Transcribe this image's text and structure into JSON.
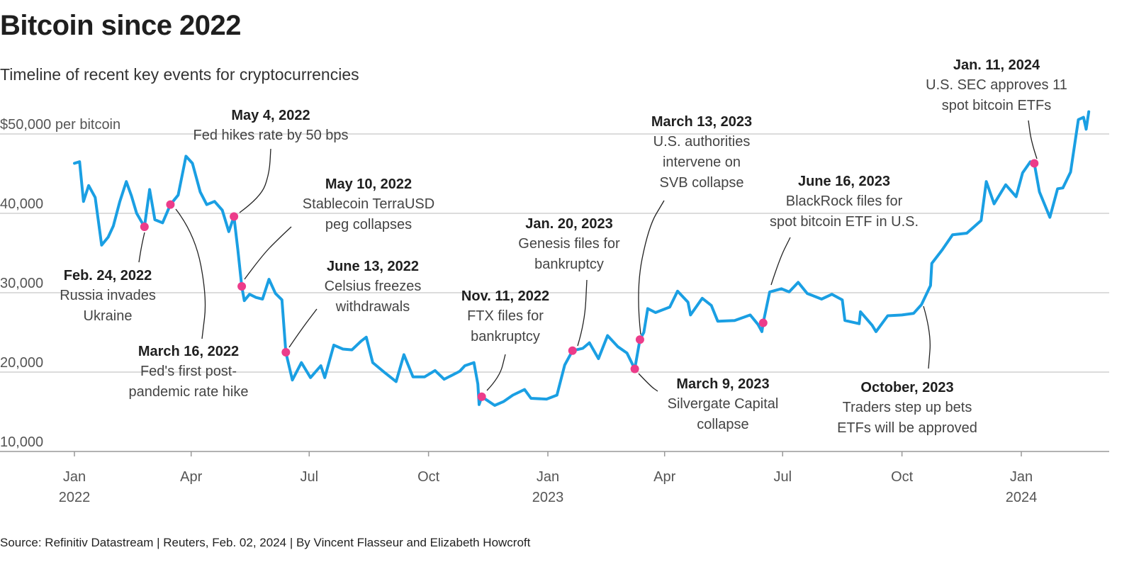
{
  "header": {
    "title": "Bitcoin since 2022",
    "subtitle": "Timeline of recent key events for cryptocurrencies"
  },
  "footer": {
    "source": "Source: Refinitiv Datastream | Reuters, Feb. 02, 2024 | By Vincent Flasseur and Elizabeth Howcroft"
  },
  "colors": {
    "line": "#1a9fe3",
    "marker": "#ec3c8a",
    "grid": "#c8c8c8",
    "axis": "#999999"
  },
  "chart_data": {
    "type": "line",
    "ylim": [
      10000,
      50000
    ],
    "y_ticks": [
      {
        "value": 50000,
        "label": "$50,000 per bitcoin"
      },
      {
        "value": 40000,
        "label": "40,000"
      },
      {
        "value": 30000,
        "label": "30,000"
      },
      {
        "value": 20000,
        "label": "20,000"
      },
      {
        "value": 10000,
        "label": "10,000"
      }
    ],
    "x_ticks": [
      {
        "date": "2022-01-01",
        "label": "Jan",
        "year": "2022"
      },
      {
        "date": "2022-04-01",
        "label": "Apr",
        "year": ""
      },
      {
        "date": "2022-07-01",
        "label": "Jul",
        "year": ""
      },
      {
        "date": "2022-10-01",
        "label": "Oct",
        "year": ""
      },
      {
        "date": "2023-01-01",
        "label": "Jan",
        "year": "2023"
      },
      {
        "date": "2023-04-01",
        "label": "Apr",
        "year": ""
      },
      {
        "date": "2023-07-01",
        "label": "Jul",
        "year": ""
      },
      {
        "date": "2023-10-01",
        "label": "Oct",
        "year": ""
      },
      {
        "date": "2024-01-01",
        "label": "Jan",
        "year": "2024"
      }
    ],
    "xlim": [
      "2021-12-25",
      "2024-02-25"
    ],
    "series": [
      {
        "points": [
          [
            "2022-01-01",
            46300
          ],
          [
            "2022-01-05",
            46500
          ],
          [
            "2022-01-08",
            41500
          ],
          [
            "2022-01-12",
            43500
          ],
          [
            "2022-01-17",
            42000
          ],
          [
            "2022-01-22",
            36000
          ],
          [
            "2022-01-27",
            37000
          ],
          [
            "2022-01-31",
            38400
          ],
          [
            "2022-02-05",
            41500
          ],
          [
            "2022-02-10",
            44000
          ],
          [
            "2022-02-14",
            42200
          ],
          [
            "2022-02-18",
            40000
          ],
          [
            "2022-02-24",
            38300
          ],
          [
            "2022-02-28",
            43000
          ],
          [
            "2022-03-04",
            39200
          ],
          [
            "2022-03-10",
            38800
          ],
          [
            "2022-03-16",
            41100
          ],
          [
            "2022-03-22",
            42300
          ],
          [
            "2022-03-28",
            47200
          ],
          [
            "2022-04-02",
            46300
          ],
          [
            "2022-04-08",
            42700
          ],
          [
            "2022-04-13",
            41100
          ],
          [
            "2022-04-19",
            41500
          ],
          [
            "2022-04-25",
            40400
          ],
          [
            "2022-04-30",
            37700
          ],
          [
            "2022-05-04",
            39600
          ],
          [
            "2022-05-07",
            35400
          ],
          [
            "2022-05-10",
            30800
          ],
          [
            "2022-05-12",
            29000
          ],
          [
            "2022-05-16",
            29800
          ],
          [
            "2022-05-21",
            29400
          ],
          [
            "2022-05-26",
            29200
          ],
          [
            "2022-05-31",
            31700
          ],
          [
            "2022-06-05",
            29900
          ],
          [
            "2022-06-10",
            29100
          ],
          [
            "2022-06-13",
            22500
          ],
          [
            "2022-06-18",
            19000
          ],
          [
            "2022-06-25",
            21200
          ],
          [
            "2022-07-02",
            19300
          ],
          [
            "2022-07-10",
            20800
          ],
          [
            "2022-07-13",
            19300
          ],
          [
            "2022-07-20",
            23400
          ],
          [
            "2022-07-27",
            22900
          ],
          [
            "2022-08-03",
            22800
          ],
          [
            "2022-08-10",
            23900
          ],
          [
            "2022-08-14",
            24400
          ],
          [
            "2022-08-19",
            21200
          ],
          [
            "2022-08-27",
            20100
          ],
          [
            "2022-09-06",
            18800
          ],
          [
            "2022-09-12",
            22200
          ],
          [
            "2022-09-19",
            19400
          ],
          [
            "2022-09-28",
            19400
          ],
          [
            "2022-10-06",
            20200
          ],
          [
            "2022-10-13",
            19100
          ],
          [
            "2022-10-25",
            20100
          ],
          [
            "2022-10-29",
            20800
          ],
          [
            "2022-11-05",
            21200
          ],
          [
            "2022-11-08",
            18500
          ],
          [
            "2022-11-09",
            15900
          ],
          [
            "2022-11-11",
            16900
          ],
          [
            "2022-11-21",
            15800
          ],
          [
            "2022-11-28",
            16300
          ],
          [
            "2022-12-05",
            17100
          ],
          [
            "2022-12-14",
            17800
          ],
          [
            "2022-12-19",
            16700
          ],
          [
            "2022-12-31",
            16600
          ],
          [
            "2023-01-08",
            17100
          ],
          [
            "2023-01-14",
            20900
          ],
          [
            "2023-01-20",
            22700
          ],
          [
            "2023-01-28",
            23000
          ],
          [
            "2023-02-02",
            23700
          ],
          [
            "2023-02-09",
            21700
          ],
          [
            "2023-02-16",
            24600
          ],
          [
            "2023-02-24",
            23200
          ],
          [
            "2023-03-03",
            22400
          ],
          [
            "2023-03-09",
            20400
          ],
          [
            "2023-03-13",
            24100
          ],
          [
            "2023-03-16",
            25000
          ],
          [
            "2023-03-19",
            28000
          ],
          [
            "2023-03-25",
            27500
          ],
          [
            "2023-04-05",
            28200
          ],
          [
            "2023-04-11",
            30200
          ],
          [
            "2023-04-19",
            28800
          ],
          [
            "2023-04-21",
            27200
          ],
          [
            "2023-04-30",
            29300
          ],
          [
            "2023-05-07",
            28400
          ],
          [
            "2023-05-12",
            26400
          ],
          [
            "2023-05-25",
            26500
          ],
          [
            "2023-06-06",
            27200
          ],
          [
            "2023-06-12",
            26000
          ],
          [
            "2023-06-15",
            25100
          ],
          [
            "2023-06-16",
            26200
          ],
          [
            "2023-06-21",
            30100
          ],
          [
            "2023-06-30",
            30500
          ],
          [
            "2023-07-06",
            30100
          ],
          [
            "2023-07-13",
            31300
          ],
          [
            "2023-07-20",
            29900
          ],
          [
            "2023-07-31",
            29200
          ],
          [
            "2023-08-08",
            29800
          ],
          [
            "2023-08-16",
            29100
          ],
          [
            "2023-08-18",
            26500
          ],
          [
            "2023-08-29",
            26100
          ],
          [
            "2023-08-30",
            27600
          ],
          [
            "2023-09-08",
            25900
          ],
          [
            "2023-09-11",
            25100
          ],
          [
            "2023-09-20",
            27100
          ],
          [
            "2023-10-01",
            27200
          ],
          [
            "2023-10-10",
            27400
          ],
          [
            "2023-10-16",
            28500
          ],
          [
            "2023-10-23",
            30900
          ],
          [
            "2023-10-24",
            33700
          ],
          [
            "2023-11-01",
            35400
          ],
          [
            "2023-11-09",
            37300
          ],
          [
            "2023-11-20",
            37500
          ],
          [
            "2023-12-01",
            39100
          ],
          [
            "2023-12-05",
            44000
          ],
          [
            "2023-12-11",
            41200
          ],
          [
            "2023-12-20",
            43600
          ],
          [
            "2023-12-28",
            42100
          ],
          [
            "2024-01-02",
            45100
          ],
          [
            "2024-01-08",
            46500
          ],
          [
            "2024-01-11",
            46300
          ],
          [
            "2024-01-15",
            42700
          ],
          [
            "2024-01-23",
            39500
          ],
          [
            "2024-01-29",
            43100
          ],
          [
            "2024-02-02",
            43200
          ],
          [
            "2024-02-08",
            45200
          ],
          [
            "2024-02-14",
            51800
          ],
          [
            "2024-02-18",
            52100
          ],
          [
            "2024-02-20",
            50600
          ],
          [
            "2024-02-22",
            52800
          ]
        ]
      }
    ],
    "annotations": [
      {
        "date": "2022-02-24",
        "value": 38300,
        "title": "Feb. 24, 2022",
        "lines": [
          "Russia invades",
          "Ukraine"
        ]
      },
      {
        "date": "2022-03-16",
        "value": 41100,
        "title": "March 16, 2022",
        "lines": [
          "Fed's first post-",
          "pandemic rate hike"
        ]
      },
      {
        "date": "2022-05-04",
        "value": 39600,
        "title": "May 4, 2022",
        "lines": [
          "Fed hikes rate by 50 bps"
        ]
      },
      {
        "date": "2022-05-10",
        "value": 30800,
        "title": "May 10, 2022",
        "lines": [
          "Stablecoin TerraUSD",
          "peg collapses"
        ]
      },
      {
        "date": "2022-06-13",
        "value": 22500,
        "title": "June 13, 2022",
        "lines": [
          "Celsius freezes",
          "withdrawals"
        ]
      },
      {
        "date": "2022-11-11",
        "value": 16900,
        "title": "Nov. 11, 2022",
        "lines": [
          "FTX files for",
          "bankruptcy"
        ]
      },
      {
        "date": "2023-01-20",
        "value": 22700,
        "title": "Jan. 20, 2023",
        "lines": [
          "Genesis files for",
          "bankruptcy"
        ]
      },
      {
        "date": "2023-03-09",
        "value": 20400,
        "title": "March 9, 2023",
        "lines": [
          "Silvergate Capital",
          "collapse"
        ]
      },
      {
        "date": "2023-03-13",
        "value": 24100,
        "title": "March 13, 2023",
        "lines": [
          "U.S. authorities",
          "intervene on",
          "SVB collapse"
        ]
      },
      {
        "date": "2023-06-16",
        "value": 26200,
        "title": "June 16, 2023",
        "lines": [
          "BlackRock files for",
          "spot bitcoin ETF in U.S."
        ]
      },
      {
        "date": "2023-10-16",
        "value": 28500,
        "title": "October, 2023",
        "lines": [
          "Traders step up bets",
          "ETFs will be approved"
        ],
        "no_marker": true
      },
      {
        "date": "2024-01-11",
        "value": 46300,
        "title": "Jan. 11, 2024",
        "lines": [
          "U.S. SEC approves 11",
          "spot bitcoin ETFs"
        ]
      }
    ]
  }
}
